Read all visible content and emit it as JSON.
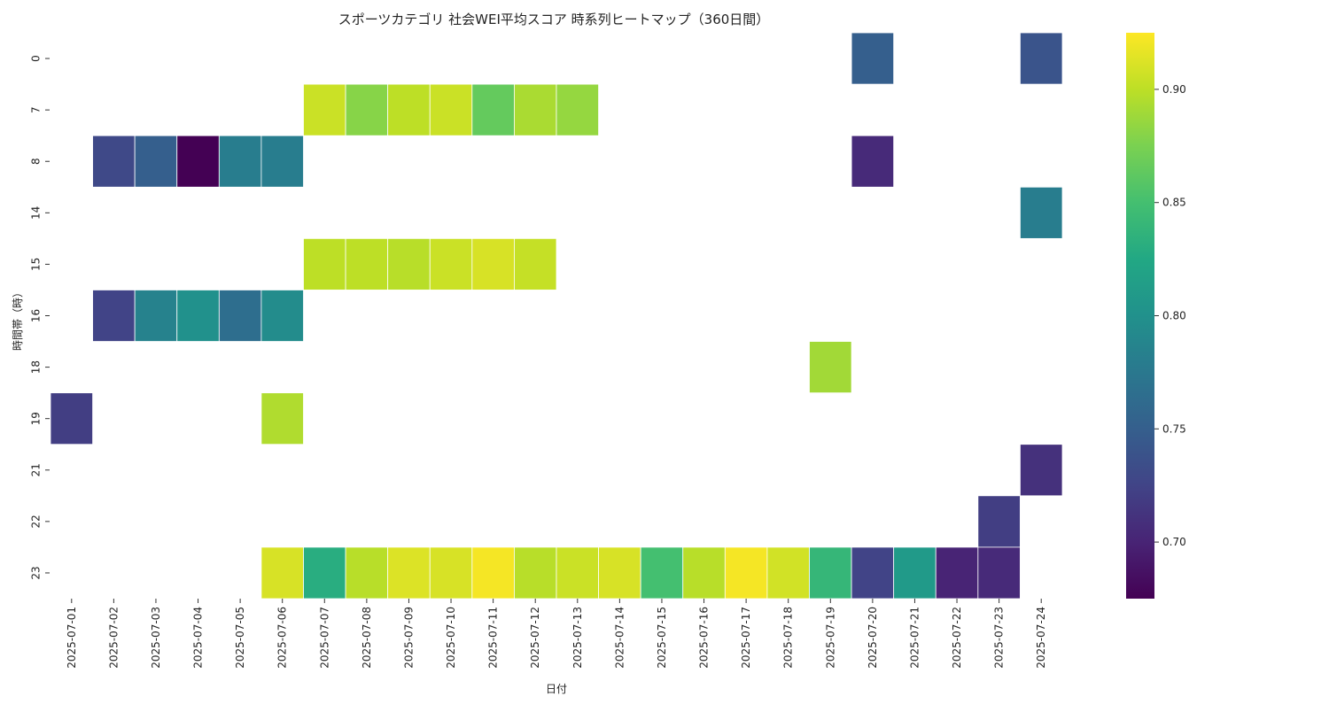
{
  "chart_data": {
    "type": "heatmap",
    "title": "スポーツカテゴリ 社会WEI平均スコア 時系列ヒートマップ（360日間）",
    "xlabel": "日付",
    "ylabel": "時間帯（時）",
    "x": [
      "2025-07-01",
      "2025-07-02",
      "2025-07-03",
      "2025-07-04",
      "2025-07-05",
      "2025-07-06",
      "2025-07-07",
      "2025-07-08",
      "2025-07-09",
      "2025-07-10",
      "2025-07-11",
      "2025-07-12",
      "2025-07-13",
      "2025-07-14",
      "2025-07-15",
      "2025-07-16",
      "2025-07-17",
      "2025-07-18",
      "2025-07-19",
      "2025-07-20",
      "2025-07-21",
      "2025-07-22",
      "2025-07-23",
      "2025-07-24"
    ],
    "y": [
      "0",
      "7",
      "8",
      "14",
      "15",
      "16",
      "18",
      "19",
      "21",
      "22",
      "23"
    ],
    "values": [
      [
        null,
        null,
        null,
        null,
        null,
        null,
        null,
        null,
        null,
        null,
        null,
        null,
        null,
        null,
        null,
        null,
        null,
        null,
        null,
        0.75,
        null,
        null,
        null,
        0.74
      ],
      [
        null,
        null,
        null,
        null,
        null,
        null,
        0.905,
        0.88,
        0.9,
        0.905,
        0.865,
        0.893,
        0.885,
        null,
        null,
        null,
        null,
        null,
        null,
        null,
        null,
        null,
        null,
        null
      ],
      [
        null,
        0.73,
        0.75,
        0.675,
        0.78,
        0.78,
        null,
        null,
        null,
        null,
        null,
        null,
        null,
        null,
        null,
        null,
        null,
        null,
        null,
        0.705,
        null,
        null,
        null,
        null
      ],
      [
        null,
        null,
        null,
        null,
        null,
        null,
        null,
        null,
        null,
        null,
        null,
        null,
        null,
        null,
        null,
        null,
        null,
        null,
        null,
        null,
        null,
        null,
        null,
        0.78
      ],
      [
        null,
        null,
        null,
        null,
        null,
        null,
        0.9,
        0.9,
        0.898,
        0.905,
        0.91,
        0.903,
        null,
        null,
        null,
        null,
        null,
        null,
        null,
        null,
        null,
        null,
        null,
        null
      ],
      [
        null,
        0.725,
        0.785,
        0.8,
        0.765,
        0.795,
        null,
        null,
        null,
        null,
        null,
        null,
        null,
        null,
        null,
        null,
        null,
        null,
        null,
        null,
        null,
        null,
        null,
        null
      ],
      [
        null,
        null,
        null,
        null,
        null,
        null,
        null,
        null,
        null,
        null,
        null,
        null,
        null,
        null,
        null,
        null,
        null,
        null,
        0.89,
        null,
        null,
        null,
        null,
        null
      ],
      [
        0.72,
        null,
        null,
        null,
        null,
        0.895,
        null,
        null,
        null,
        null,
        null,
        null,
        null,
        null,
        null,
        null,
        null,
        null,
        null,
        null,
        null,
        null,
        null,
        null
      ],
      [
        null,
        null,
        null,
        null,
        null,
        null,
        null,
        null,
        null,
        null,
        null,
        null,
        null,
        null,
        null,
        null,
        null,
        null,
        null,
        null,
        null,
        null,
        null,
        0.71
      ],
      [
        null,
        null,
        null,
        null,
        null,
        null,
        null,
        null,
        null,
        null,
        null,
        null,
        null,
        null,
        null,
        null,
        null,
        null,
        null,
        null,
        null,
        null,
        0.72,
        null
      ],
      [
        null,
        null,
        null,
        null,
        null,
        0.91,
        0.83,
        0.898,
        0.912,
        0.91,
        0.922,
        0.898,
        0.905,
        0.91,
        0.85,
        0.898,
        0.922,
        0.908,
        0.84,
        0.725,
        0.81,
        0.7,
        0.705,
        null
      ]
    ],
    "colorbar": {
      "colormap": "viridis",
      "range": [
        0.675,
        0.925
      ],
      "ticks": [
        "0.70",
        "0.75",
        "0.80",
        "0.85",
        "0.90"
      ]
    },
    "grid": false
  }
}
